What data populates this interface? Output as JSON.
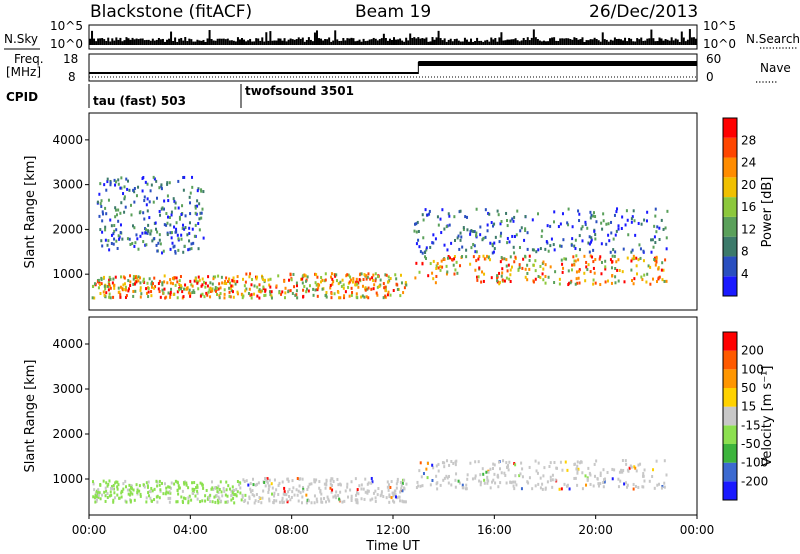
{
  "header": {
    "title": "Blackstone (fitACF)",
    "beam": "Beam 19",
    "date": "26/Dec/2013"
  },
  "noise_panel": {
    "left_label": "N.Sky",
    "right_label": "N.Search",
    "left_ticks": [
      "10^5",
      "10^0"
    ],
    "right_ticks": [
      "10^5",
      "10^0"
    ]
  },
  "freq_panel": {
    "left_label_line1": "Freq.",
    "left_label_line2": "[MHz]",
    "right_label": "Nave",
    "left_ticks": [
      "18",
      "8"
    ],
    "right_ticks": [
      "60",
      "0"
    ]
  },
  "cpid": {
    "label": "CPID",
    "programs": [
      {
        "name": "tau (fast) 503",
        "start_hour": 0
      },
      {
        "name": "twofsound 3501",
        "start_hour": 6
      }
    ]
  },
  "chart_data": [
    {
      "type": "heatmap",
      "title": "",
      "xlabel": "Time UT",
      "ylabel": "Slant Range [km]",
      "y_ticks": [
        1000,
        2000,
        3000,
        4000
      ],
      "ylim": [
        200,
        4600
      ],
      "xlim_hours": [
        0,
        24
      ],
      "colorbar": {
        "label": "Power [dB]",
        "ticks": [
          "4",
          "8",
          "12",
          "16",
          "20",
          "24",
          "28"
        ],
        "colors": [
          "#1a1aff",
          "#2a4fc0",
          "#3c7a6a",
          "#5aa05a",
          "#8cc83c",
          "#f0c000",
          "#ff8c00",
          "#ff4600",
          "#ff0000"
        ]
      },
      "echo_bands": [
        {
          "t0": 0.1,
          "t1": 6.0,
          "r0": 500,
          "r1": 1000,
          "level": "high"
        },
        {
          "t0": 6.0,
          "t1": 12.5,
          "r0": 500,
          "r1": 1050,
          "level": "high"
        },
        {
          "t0": 12.8,
          "t1": 22.8,
          "r0": 800,
          "r1": 1450,
          "level": "high"
        },
        {
          "t0": 0.3,
          "t1": 4.5,
          "r0": 1500,
          "r1": 3200,
          "level": "low"
        },
        {
          "t0": 12.8,
          "t1": 22.8,
          "r0": 1500,
          "r1": 2500,
          "level": "low"
        }
      ]
    },
    {
      "type": "heatmap",
      "title": "",
      "xlabel": "Time UT",
      "ylabel": "Slant Range [km]",
      "y_ticks": [
        1000,
        2000,
        3000,
        4000
      ],
      "ylim": [
        200,
        4600
      ],
      "xlim_hours": [
        0,
        24
      ],
      "x_ticks": [
        "00:00",
        "04:00",
        "08:00",
        "12:00",
        "16:00",
        "20:00",
        "00:00"
      ],
      "colorbar": {
        "label": "Velocity [m s⁻¹]",
        "ticks": [
          "200",
          "100",
          "50",
          "15",
          "-15",
          "-50",
          "-100",
          "-200"
        ],
        "colors": [
          "#1a1aff",
          "#3c6ad0",
          "#3cb43c",
          "#8ce050",
          "#c8c8c8",
          "#ffd200",
          "#ff9600",
          "#ff5a00",
          "#ff0000"
        ]
      },
      "echo_bands": [
        {
          "t0": 0.1,
          "t1": 6.0,
          "r0": 500,
          "r1": 1000,
          "level": "green"
        },
        {
          "t0": 6.0,
          "t1": 12.5,
          "r0": 500,
          "r1": 1050,
          "level": "grey"
        },
        {
          "t0": 12.8,
          "t1": 22.8,
          "r0": 800,
          "r1": 1450,
          "level": "grey"
        }
      ]
    }
  ]
}
